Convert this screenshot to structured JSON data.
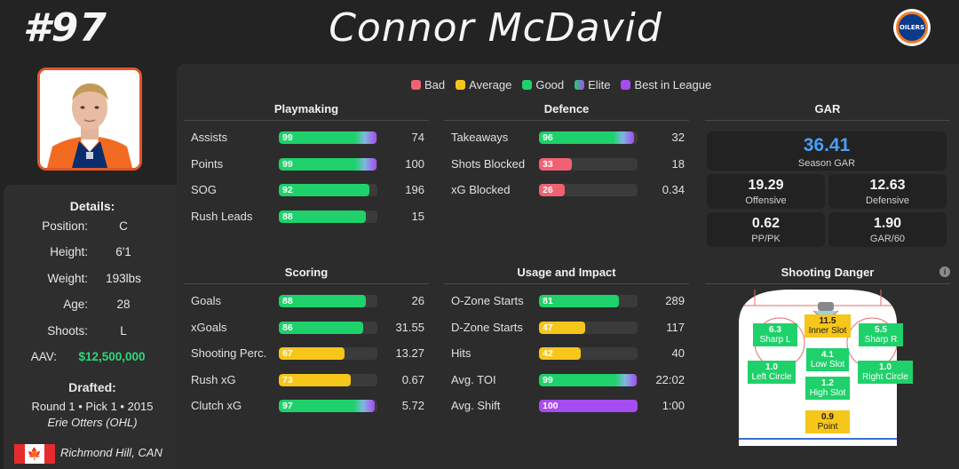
{
  "header": {
    "number": "#97",
    "name": "Connor McDavid",
    "team_logo_text": "OILERS"
  },
  "details": {
    "title": "Details:",
    "rows": [
      {
        "label": "Position:",
        "value": "C"
      },
      {
        "label": "Height:",
        "value": "6'1"
      },
      {
        "label": "Weight:",
        "value": "193lbs"
      },
      {
        "label": "Age:",
        "value": "28"
      },
      {
        "label": "Shoots:",
        "value": "L"
      },
      {
        "label": "AAV:",
        "value": "$12,500,000"
      }
    ],
    "drafted_title": "Drafted:",
    "drafted_line": "Round 1 • Pick 1 • 2015",
    "drafted_team": "Erie Otters (OHL)",
    "birthplace": "Richmond Hill, CAN",
    "flag_icon": "canada-flag-icon"
  },
  "legend": [
    {
      "label": "Bad",
      "color": "#f06272"
    },
    {
      "label": "Average",
      "color": "#f7c61a"
    },
    {
      "label": "Good",
      "color": "#1fd16b"
    },
    {
      "label": "Elite",
      "color": "gradient"
    },
    {
      "label": "Best in League",
      "color": "#a64cf0"
    }
  ],
  "colors": {
    "bad": "#f06272",
    "average": "#f7c61a",
    "good": "#1fd16b",
    "best": "#a64cf0",
    "gar_blue": "#4a9ff5",
    "aav_green": "#2fd67a"
  },
  "sections": {
    "playmaking": {
      "title": "Playmaking",
      "stats": [
        {
          "label": "Assists",
          "pct": 99,
          "value": "74",
          "tier": "elite"
        },
        {
          "label": "Points",
          "pct": 99,
          "value": "100",
          "tier": "elite"
        },
        {
          "label": "SOG",
          "pct": 92,
          "value": "196",
          "tier": "good"
        },
        {
          "label": "Rush Leads",
          "pct": 88,
          "value": "15",
          "tier": "good"
        }
      ]
    },
    "defence": {
      "title": "Defence",
      "stats": [
        {
          "label": "Takeaways",
          "pct": 96,
          "value": "32",
          "tier": "elite"
        },
        {
          "label": "Shots Blocked",
          "pct": 33,
          "value": "18",
          "tier": "bad"
        },
        {
          "label": "xG Blocked",
          "pct": 26,
          "value": "0.34",
          "tier": "bad"
        }
      ]
    },
    "scoring": {
      "title": "Scoring",
      "stats": [
        {
          "label": "Goals",
          "pct": 88,
          "value": "26",
          "tier": "good"
        },
        {
          "label": "xGoals",
          "pct": 86,
          "value": "31.55",
          "tier": "good"
        },
        {
          "label": "Shooting Perc.",
          "pct": 67,
          "value": "13.27",
          "tier": "average"
        },
        {
          "label": "Rush xG",
          "pct": 73,
          "value": "0.67",
          "tier": "average"
        },
        {
          "label": "Clutch xG",
          "pct": 97,
          "value": "5.72",
          "tier": "elite"
        }
      ]
    },
    "usage": {
      "title": "Usage and Impact",
      "stats": [
        {
          "label": "O-Zone Starts",
          "pct": 81,
          "value": "289",
          "tier": "good"
        },
        {
          "label": "D-Zone Starts",
          "pct": 47,
          "value": "117",
          "tier": "average"
        },
        {
          "label": "Hits",
          "pct": 42,
          "value": "40",
          "tier": "average"
        },
        {
          "label": "Avg. TOI",
          "pct": 99,
          "value": "22:02",
          "tier": "elite"
        },
        {
          "label": "Avg. Shift",
          "pct": 100,
          "value": "1:00",
          "tier": "best"
        }
      ]
    }
  },
  "gar": {
    "title": "GAR",
    "season": {
      "value": "36.41",
      "label": "Season GAR"
    },
    "cards": [
      {
        "value": "19.29",
        "label": "Offensive"
      },
      {
        "value": "12.63",
        "label": "Defensive"
      },
      {
        "value": "0.62",
        "label": "PP/PK"
      },
      {
        "value": "1.90",
        "label": "GAR/60"
      }
    ]
  },
  "shooting": {
    "title": "Shooting Danger",
    "zones": [
      {
        "value": "11.5",
        "label": "Inner Slot",
        "tier": "average"
      },
      {
        "value": "6.3",
        "label": "Sharp L",
        "tier": "good"
      },
      {
        "value": "5.5",
        "label": "Sharp R",
        "tier": "good"
      },
      {
        "value": "4.1",
        "label": "Low Slot",
        "tier": "good"
      },
      {
        "value": "1.0",
        "label": "Left Circle",
        "tier": "good"
      },
      {
        "value": "1.0",
        "label": "Right Circle",
        "tier": "good"
      },
      {
        "value": "1.2",
        "label": "High Slot",
        "tier": "good"
      },
      {
        "value": "0.9",
        "label": "Point",
        "tier": "average"
      }
    ]
  }
}
